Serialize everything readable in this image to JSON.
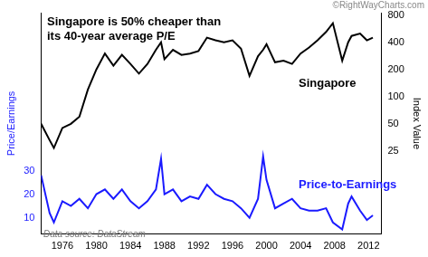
{
  "chart_data": {
    "type": "line",
    "title": [
      "Singapore is 50% cheaper than",
      "its 40-year average P/E"
    ],
    "y_label": "Index Value",
    "y2_label": "Price/Earnings",
    "source": "Data source: DataStream",
    "credit": "©RightWayCharts.com",
    "x": [
      1973.5,
      1974.5,
      1975,
      1976,
      1977,
      1978,
      1979,
      1980,
      1981,
      1982,
      1983,
      1984,
      1985,
      1986,
      1987,
      1987.6,
      1988,
      1989,
      1990,
      1991,
      1992,
      1993,
      1994,
      1995,
      1996,
      1997,
      1998,
      1999,
      1999.6,
      2000,
      2001,
      2002,
      2003,
      2004,
      2005,
      2006,
      2007,
      2007.8,
      2008.9,
      2009.6,
      2010,
      2011,
      2011.8,
      2012.5
    ],
    "series": [
      {
        "name": "Singapore",
        "color": "#000000",
        "values": [
          50,
          33,
          27,
          45,
          50,
          60,
          120,
          200,
          300,
          220,
          290,
          230,
          180,
          230,
          330,
          400,
          260,
          330,
          290,
          300,
          320,
          450,
          420,
          400,
          420,
          340,
          170,
          280,
          330,
          380,
          240,
          250,
          230,
          300,
          350,
          420,
          520,
          650,
          250,
          400,
          470,
          500,
          420,
          450
        ]
      },
      {
        "name": "Price-to-Earnings",
        "color": "#1a1aff",
        "axis": "y2",
        "values": [
          28,
          12,
          8,
          17,
          15,
          18,
          14,
          20,
          22,
          18,
          22,
          17,
          14,
          17,
          22,
          35,
          20,
          22,
          17,
          19,
          18,
          24,
          20,
          18,
          17,
          14,
          10,
          18,
          36,
          26,
          14,
          16,
          18,
          14,
          13,
          13,
          14,
          8,
          5,
          16,
          19,
          13,
          9,
          11
        ]
      }
    ],
    "xlim": [
      1973.5,
      2013.5
    ],
    "xticks": [
      1976,
      1980,
      1984,
      1988,
      1992,
      1996,
      2000,
      2004,
      2008,
      2012
    ],
    "ylim": [
      3,
      850
    ],
    "yticks": [
      25,
      50,
      100,
      200,
      400,
      800
    ],
    "log": "y",
    "y2lim": [
      3,
      97
    ],
    "y2ticks": [
      10,
      20,
      30
    ],
    "grid": false
  }
}
